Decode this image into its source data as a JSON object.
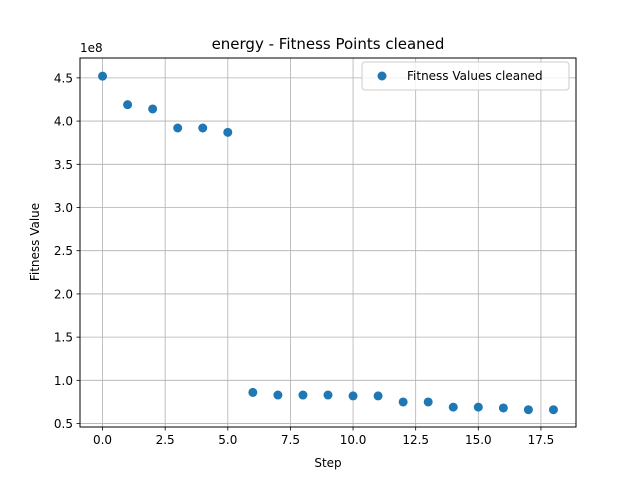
{
  "chart_data": {
    "type": "scatter",
    "title": "energy - Fitness Points cleaned",
    "xlabel": "Step",
    "ylabel": "Fitness Value",
    "y_offset_label": "1e8",
    "xlim": [
      -0.9,
      18.9
    ],
    "ylim": [
      0.46,
      4.73
    ],
    "xticks": [
      0.0,
      2.5,
      5.0,
      7.5,
      10.0,
      12.5,
      15.0,
      17.5
    ],
    "xtick_labels": [
      "0.0",
      "2.5",
      "5.0",
      "7.5",
      "10.0",
      "12.5",
      "15.0",
      "17.5"
    ],
    "yticks": [
      0.5,
      1.0,
      1.5,
      2.0,
      2.5,
      3.0,
      3.5,
      4.0,
      4.5
    ],
    "ytick_labels": [
      "0.5",
      "1.0",
      "1.5",
      "2.0",
      "2.5",
      "3.0",
      "3.5",
      "4.0",
      "4.5"
    ],
    "grid": true,
    "legend_position": "top-right",
    "series": [
      {
        "name": "Fitness Values cleaned",
        "color": "#1f77b4",
        "x": [
          0,
          1,
          2,
          3,
          4,
          5,
          6,
          7,
          8,
          9,
          10,
          11,
          12,
          13,
          14,
          15,
          16,
          17,
          18
        ],
        "y": [
          4.52,
          4.19,
          4.14,
          3.92,
          3.92,
          3.87,
          0.86,
          0.83,
          0.83,
          0.83,
          0.82,
          0.82,
          0.75,
          0.75,
          0.69,
          0.69,
          0.68,
          0.66,
          0.66
        ]
      }
    ]
  }
}
